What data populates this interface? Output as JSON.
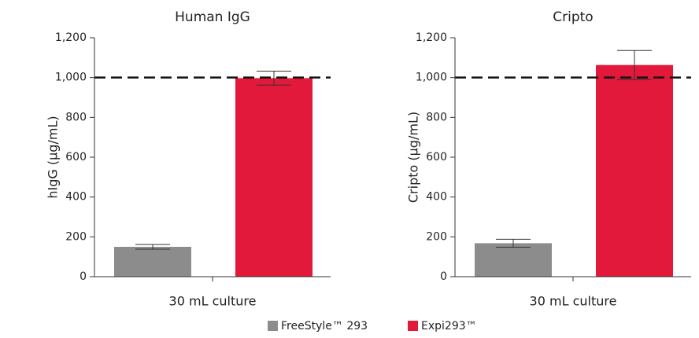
{
  "chart_data": {
    "type": "bar",
    "series": [
      {
        "name": "FreeStyle™ 293",
        "color": "#8c8c8c"
      },
      {
        "name": "Expi293™",
        "color": "#e2193a"
      }
    ],
    "legend": "bottom",
    "charts": [
      {
        "title": "Human IgG",
        "ylabel": "hIgG (µg/mL)",
        "xlabel": "30 mL culture",
        "values": [
          150,
          997
        ],
        "errors": [
          12,
          35
        ],
        "reference_line": 1000,
        "ylim": [
          0,
          1200
        ],
        "yticks": [
          0,
          200,
          400,
          600,
          800,
          {
            "value": 1000,
            "label": "1,000"
          },
          {
            "value": 1200,
            "label": "1,200"
          }
        ]
      },
      {
        "title": "Cripto",
        "ylabel": "Cripto (µg/mL)",
        "xlabel": "30 mL culture",
        "values": [
          168,
          1063
        ],
        "errors": [
          20,
          73
        ],
        "reference_line": 1000,
        "ylim": [
          0,
          1200
        ],
        "yticks": [
          0,
          200,
          400,
          600,
          800,
          {
            "value": 1000,
            "label": "1,000"
          },
          {
            "value": 1200,
            "label": "1,200"
          }
        ]
      }
    ]
  }
}
